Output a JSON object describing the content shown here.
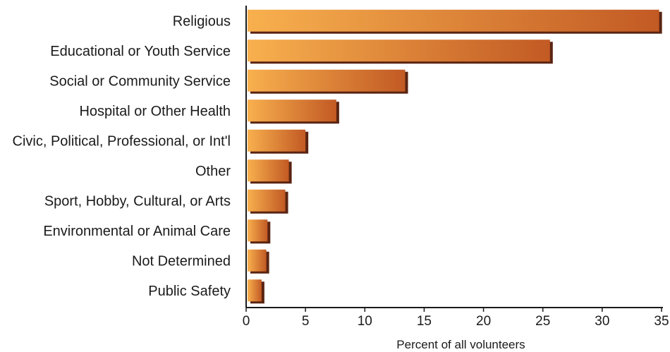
{
  "chart_data": {
    "type": "bar",
    "orientation": "horizontal",
    "categories": [
      "Religious",
      "Educational or Youth Service",
      "Social or Community Service",
      "Hospital or Other Health",
      "Civic, Political, Professional, or Int'l",
      "Other",
      "Sport, Hobby, Cultural, or Arts",
      "Environmental or Animal Care",
      "Not Determined",
      "Public Safety"
    ],
    "values": [
      34.8,
      25.6,
      13.4,
      7.6,
      5.0,
      3.6,
      3.3,
      1.8,
      1.7,
      1.3
    ],
    "xlabel": "Percent of all volunteers",
    "ylabel": "",
    "xlim": [
      0,
      35
    ],
    "xticks": [
      0,
      5,
      10,
      15,
      20,
      25,
      30,
      35
    ],
    "grid": false,
    "legend": "none",
    "colors": {
      "bar_start": "#f8b04e",
      "bar_end": "#c25a24",
      "shadow": "#5a2412"
    }
  }
}
